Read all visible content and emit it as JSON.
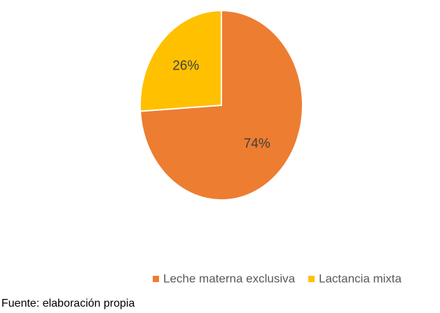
{
  "chart_data": {
    "type": "pie",
    "categories": [
      "Leche materna exclusiva",
      "Lactancia mixta"
    ],
    "values": [
      74,
      26
    ],
    "value_labels": [
      "74%",
      "26%"
    ],
    "colors": [
      "#ED7D31",
      "#FFC000"
    ],
    "legend": "bottom",
    "source": "Fuente: elaboración propia"
  }
}
